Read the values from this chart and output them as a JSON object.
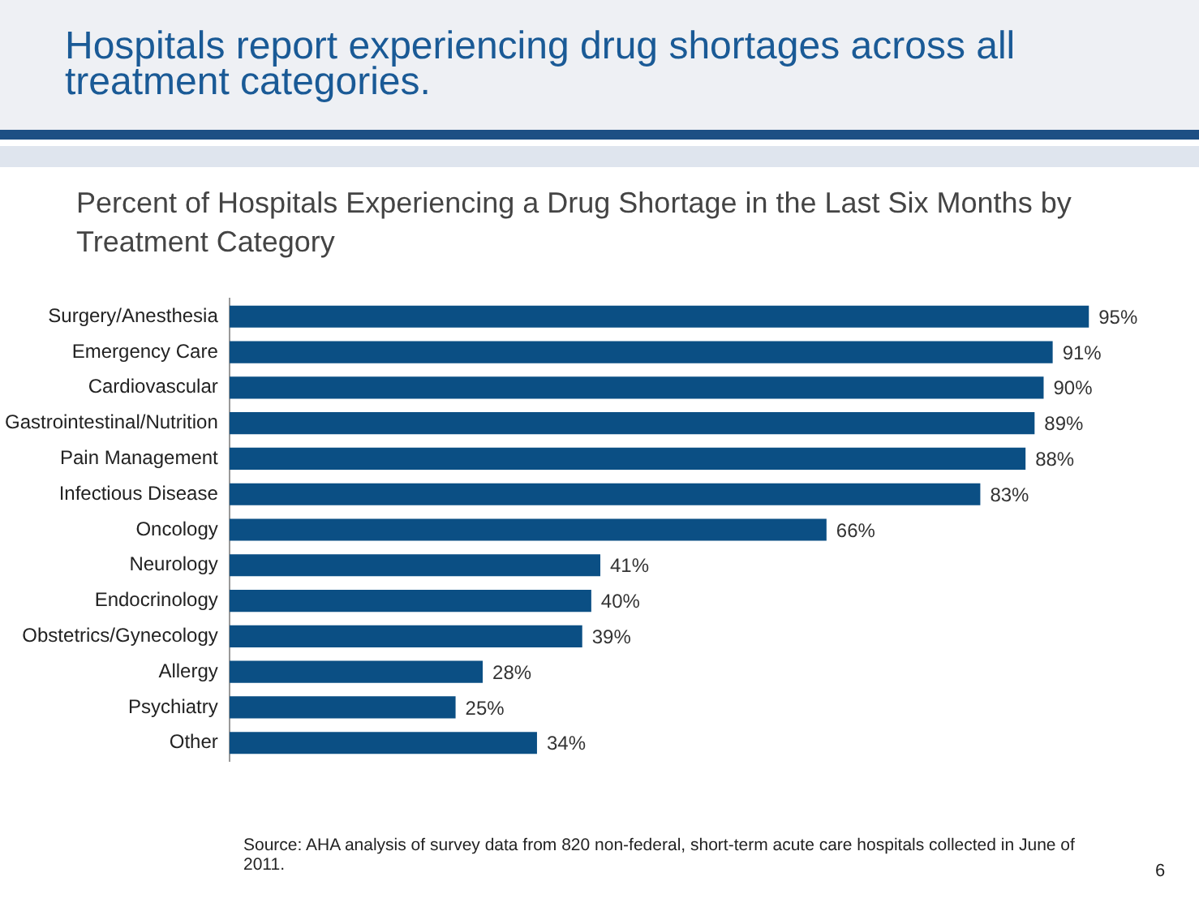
{
  "chart_data": {
    "type": "bar",
    "orientation": "horizontal",
    "title": "Hospitals report experiencing drug shortages across all treatment categories.",
    "subtitle": "Percent of Hospitals Experiencing a Drug Shortage in the Last Six Months by Treatment Category",
    "categories": [
      "Surgery/Anesthesia",
      "Emergency Care",
      "Cardiovascular",
      "Gastrointestinal/Nutrition",
      "Pain Management",
      "Infectious Disease",
      "Oncology",
      "Neurology",
      "Endocrinology",
      "Obstetrics/Gynecology",
      "Allergy",
      "Psychiatry",
      "Other"
    ],
    "values": [
      95,
      91,
      90,
      89,
      88,
      83,
      66,
      41,
      40,
      39,
      28,
      25,
      34
    ],
    "value_labels": [
      "95%",
      "91%",
      "90%",
      "89%",
      "88%",
      "83%",
      "66%",
      "41%",
      "40%",
      "39%",
      "28%",
      "25%",
      "34%"
    ],
    "color": "#0b4f84",
    "tick_labels": "y",
    "grid": false,
    "legend": false,
    "annotations": [
      "Source:  AHA analysis of survey data from 820 non-federal, short-term acute care hospitals collected in June of 2011.",
      "6"
    ]
  }
}
